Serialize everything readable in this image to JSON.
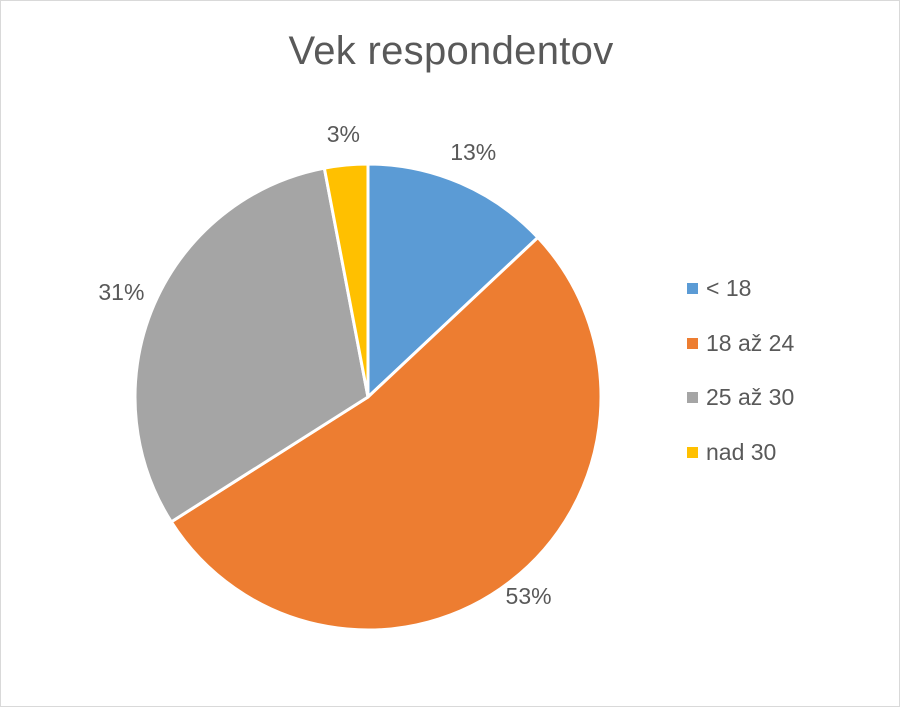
{
  "chart_data": {
    "type": "pie",
    "title": "Vek respondentov",
    "categories": [
      "< 18",
      "18 až 24",
      "25 až 30",
      "nad 30"
    ],
    "values": [
      13,
      53,
      31,
      3
    ],
    "data_labels": [
      "13%",
      "53%",
      "31%",
      "3%"
    ],
    "colors": [
      "#5b9bd5",
      "#ed7d31",
      "#a5a5a5",
      "#ffc000"
    ],
    "legend_position": "right",
    "start_angle": "top, clockwise"
  }
}
